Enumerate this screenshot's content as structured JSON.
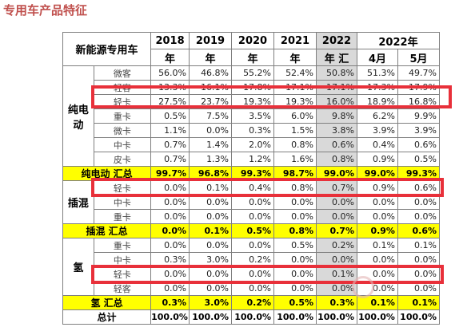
{
  "page_title": "专用车产品特征",
  "table": {
    "corner_label": "新能源专用车",
    "year_headers": [
      {
        "top": "2018",
        "bottom": "年"
      },
      {
        "top": "2019",
        "bottom": "年"
      },
      {
        "top": "2020",
        "bottom": "年"
      },
      {
        "top": "2021",
        "bottom": "年"
      },
      {
        "top": "2022",
        "bottom": "年 汇"
      }
    ],
    "month_group_label": "2022年",
    "month_headers": [
      "4月",
      "5月"
    ],
    "groups": [
      {
        "name": "纯电\n动",
        "rows": [
          {
            "label": "微客",
            "values": [
              "56.0%",
              "46.8%",
              "55.2%",
              "52.4%",
              "50.8%",
              "51.3%",
              "49.7%"
            ]
          },
          {
            "label": "轻客",
            "values": [
              "13.3%",
              "16.1%",
              "17.8%",
              "17.1%",
              "17.1%",
              "17.3%",
              "17.9%"
            ]
          },
          {
            "label": "轻卡",
            "values": [
              "27.5%",
              "23.7%",
              "19.3%",
              "19.3%",
              "16.0%",
              "18.9%",
              "16.8%"
            ]
          },
          {
            "label": "重卡",
            "values": [
              "0.5%",
              "7.5%",
              "3.5%",
              "6.0%",
              "9.8%",
              "6.2%",
              "9.9%"
            ]
          },
          {
            "label": "微卡",
            "values": [
              "1.1%",
              "0.0%",
              "0.3%",
              "1.5%",
              "3.8%",
              "3.9%",
              "3.9%"
            ]
          },
          {
            "label": "中卡",
            "values": [
              "0.7%",
              "1.4%",
              "2.0%",
              "0.8%",
              "0.6%",
              "0.4%",
              "0.6%"
            ]
          },
          {
            "label": "皮卡",
            "values": [
              "0.7%",
              "1.3%",
              "1.2%",
              "1.6%",
              "0.8%",
              "0.9%",
              "0.5%"
            ]
          }
        ],
        "total": {
          "label": "纯电动 汇总",
          "values": [
            "99.7%",
            "96.8%",
            "99.3%",
            "98.7%",
            "99.0%",
            "99.0%",
            "99.3%"
          ]
        }
      },
      {
        "name": "插混",
        "rows": [
          {
            "label": "轻卡",
            "values": [
              "0.0%",
              "0.1%",
              "0.4%",
              "0.8%",
              "0.7%",
              "0.9%",
              "0.6%"
            ]
          },
          {
            "label": "中卡",
            "values": [
              "0.0%",
              "0.0%",
              "0.0%",
              "0.0%",
              "0.0%",
              "0.0%",
              "0.0%"
            ]
          },
          {
            "label": "重卡",
            "values": [
              "0.0%",
              "0.0%",
              "0.0%",
              "0.0%",
              "0.0%",
              "0.0%",
              "0.0%"
            ]
          }
        ],
        "total": {
          "label": "插混 汇总",
          "values": [
            "0.0%",
            "0.1%",
            "0.5%",
            "0.8%",
            "0.7%",
            "0.9%",
            "0.6%"
          ]
        }
      },
      {
        "name": "氢",
        "rows": [
          {
            "label": "重卡",
            "values": [
              "0.0%",
              "0.0%",
              "0.0%",
              "0.5%",
              "0.2%",
              "0.1%",
              "0.1%"
            ]
          },
          {
            "label": "中卡",
            "values": [
              "0.3%",
              "3.0%",
              "0.2%",
              "0.0%",
              "0.0%",
              "0.0%",
              "0.0%"
            ]
          },
          {
            "label": "轻卡",
            "values": [
              "0.0%",
              "0.0%",
              "0.0%",
              "0.0%",
              "0.1%",
              "0.0%",
              "0.0%"
            ]
          },
          {
            "label": "轻客",
            "values": [
              "0.0%",
              "0.0%",
              "0.0%",
              "0.0%",
              "0.0%",
              "0.0%",
              "0.0%"
            ]
          }
        ],
        "total": {
          "label": "氢 汇总",
          "values": [
            "0.3%",
            "3.0%",
            "0.2%",
            "0.5%",
            "0.3%",
            "0.1%",
            "0.1%"
          ]
        }
      }
    ],
    "grand_total": {
      "label": "总计",
      "values": [
        "100.0%",
        "100.0%",
        "100.0%",
        "100.0%",
        "100.0%",
        "100.0%",
        "100.0%"
      ]
    }
  },
  "highlight_color": "#e8303a",
  "total_row_color": "#ffff00",
  "title_color": "#c0504d"
}
